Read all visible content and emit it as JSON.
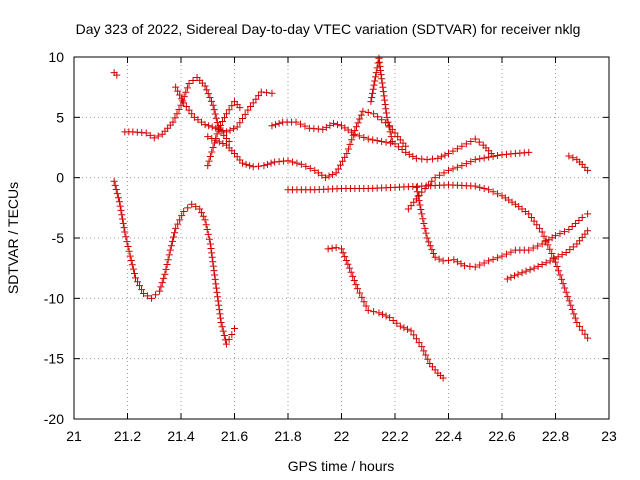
{
  "chart_data": {
    "type": "scatter",
    "title": "Day 323 of 2022, Sidereal Day-to-day VTEC variation (SDTVAR) for receiver nklg",
    "xlabel": "GPS time / hours",
    "ylabel": "SDTVAR / TECUs",
    "xlim": [
      21,
      23
    ],
    "ylim": [
      -20,
      10
    ],
    "xticks": [
      "21",
      "21.2",
      "21.4",
      "21.6",
      "21.8",
      "22",
      "22.2",
      "22.4",
      "22.6",
      "22.8",
      "23"
    ],
    "yticks": [
      "-20",
      "-15",
      "-10",
      "-5",
      "0",
      "5",
      "10"
    ],
    "grid": true,
    "marker": "+",
    "color": "#d40000",
    "series": [
      {
        "name": "t1",
        "points": [
          [
            21.15,
            8.7
          ],
          [
            21.16,
            8.5
          ]
        ]
      },
      {
        "name": "t2",
        "points": [
          [
            21.15,
            -0.3
          ],
          [
            21.17,
            -2
          ],
          [
            21.19,
            -4.5
          ],
          [
            21.21,
            -6.5
          ],
          [
            21.23,
            -8.3
          ],
          [
            21.26,
            -9.6
          ],
          [
            21.29,
            -10
          ],
          [
            21.32,
            -9.4
          ],
          [
            21.34,
            -8
          ],
          [
            21.36,
            -6
          ],
          [
            21.38,
            -4.2
          ],
          [
            21.41,
            -2.8
          ],
          [
            21.44,
            -2.2
          ],
          [
            21.47,
            -2.6
          ],
          [
            21.49,
            -3.5
          ],
          [
            21.51,
            -5.5
          ],
          [
            21.53,
            -8.8
          ],
          [
            21.55,
            -12
          ],
          [
            21.57,
            -13.8
          ],
          [
            21.59,
            -13
          ],
          [
            21.6,
            -12.5
          ]
        ]
      },
      {
        "name": "t3",
        "points": [
          [
            21.19,
            3.8
          ],
          [
            21.22,
            3.8
          ],
          [
            21.27,
            3.7
          ],
          [
            21.3,
            3.3
          ],
          [
            21.33,
            3.6
          ],
          [
            21.37,
            4.6
          ],
          [
            21.4,
            6
          ],
          [
            21.43,
            7.8
          ],
          [
            21.46,
            8.3
          ],
          [
            21.49,
            7.6
          ],
          [
            21.52,
            6
          ],
          [
            21.54,
            4.2
          ],
          [
            21.56,
            3.5
          ],
          [
            21.58,
            3
          ]
        ]
      },
      {
        "name": "t4",
        "points": [
          [
            21.38,
            7.5
          ],
          [
            21.41,
            6.2
          ],
          [
            21.45,
            5
          ],
          [
            21.49,
            4.4
          ],
          [
            21.53,
            4.1
          ],
          [
            21.57,
            3.8
          ],
          [
            21.61,
            4.2
          ],
          [
            21.65,
            5.6
          ],
          [
            21.7,
            7.1
          ],
          [
            21.74,
            7
          ]
        ]
      },
      {
        "name": "t5",
        "points": [
          [
            21.5,
            1
          ],
          [
            21.52,
            2.5
          ],
          [
            21.54,
            4
          ],
          [
            21.57,
            5.3
          ],
          [
            21.6,
            6.3
          ],
          [
            21.62,
            5.8
          ]
        ]
      },
      {
        "name": "t6",
        "points": [
          [
            21.5,
            3.4
          ],
          [
            21.53,
            3.1
          ],
          [
            21.57,
            2.7
          ],
          [
            21.6,
            2
          ],
          [
            21.63,
            1.2
          ],
          [
            21.67,
            0.9
          ],
          [
            21.71,
            1
          ],
          [
            21.75,
            1.3
          ],
          [
            21.8,
            1.4
          ],
          [
            21.85,
            1.1
          ],
          [
            21.9,
            0.6
          ],
          [
            21.94,
            0
          ],
          [
            21.98,
            0.4
          ],
          [
            22.02,
            2
          ],
          [
            22.05,
            3.9
          ],
          [
            22.08,
            5.5
          ],
          [
            22.12,
            5.3
          ],
          [
            22.15,
            4.8
          ],
          [
            22.18,
            4.3
          ],
          [
            22.21,
            3.4
          ],
          [
            22.24,
            2.6
          ]
        ]
      },
      {
        "name": "t7",
        "points": [
          [
            21.74,
            4.3
          ],
          [
            21.78,
            4.6
          ],
          [
            21.83,
            4.6
          ],
          [
            21.88,
            4.1
          ],
          [
            21.93,
            4
          ],
          [
            21.97,
            4.5
          ],
          [
            22,
            4.3
          ],
          [
            22.05,
            3.6
          ],
          [
            22.1,
            3.2
          ],
          [
            22.15,
            3
          ],
          [
            22.2,
            2.8
          ],
          [
            22.24,
            2.1
          ],
          [
            22.28,
            1.6
          ],
          [
            22.32,
            1.5
          ],
          [
            22.36,
            1.6
          ],
          [
            22.4,
            2
          ],
          [
            22.45,
            2.6
          ],
          [
            22.5,
            3.2
          ],
          [
            22.53,
            2.7
          ],
          [
            22.56,
            2
          ]
        ]
      },
      {
        "name": "t8",
        "points": [
          [
            22.11,
            6.3
          ],
          [
            22.13,
            8.7
          ],
          [
            22.14,
            9.9
          ],
          [
            22.15,
            8.2
          ],
          [
            22.17,
            5
          ],
          [
            22.19,
            3
          ]
        ]
      },
      {
        "name": "t9",
        "points": [
          [
            21.8,
            -1
          ],
          [
            21.9,
            -1
          ],
          [
            22,
            -0.9
          ],
          [
            22.1,
            -0.9
          ],
          [
            22.2,
            -0.8
          ],
          [
            22.3,
            -0.7
          ],
          [
            22.4,
            -0.6
          ],
          [
            22.5,
            -0.7
          ],
          [
            22.55,
            -1
          ],
          [
            22.6,
            -1.5
          ],
          [
            22.65,
            -2.2
          ],
          [
            22.7,
            -3
          ],
          [
            22.75,
            -4.5
          ],
          [
            22.8,
            -7
          ],
          [
            22.84,
            -9.5
          ],
          [
            22.88,
            -12
          ],
          [
            22.92,
            -13.3
          ]
        ]
      },
      {
        "name": "t10",
        "points": [
          [
            22.25,
            -2.6
          ],
          [
            22.3,
            -1.2
          ],
          [
            22.35,
            0
          ],
          [
            22.4,
            0.6
          ],
          [
            22.45,
            1
          ],
          [
            22.5,
            1.5
          ],
          [
            22.55,
            1.7
          ],
          [
            22.6,
            1.9
          ],
          [
            22.65,
            2
          ],
          [
            22.7,
            2.1
          ]
        ]
      },
      {
        "name": "t11",
        "points": [
          [
            22.28,
            -0.8
          ],
          [
            22.3,
            -3
          ],
          [
            22.32,
            -5
          ],
          [
            22.35,
            -6.6
          ],
          [
            22.38,
            -6.9
          ],
          [
            22.42,
            -6.8
          ],
          [
            22.46,
            -7.3
          ],
          [
            22.5,
            -7.4
          ],
          [
            22.55,
            -6.9
          ],
          [
            22.6,
            -6.5
          ],
          [
            22.65,
            -6
          ],
          [
            22.7,
            -6
          ],
          [
            22.75,
            -5.5
          ],
          [
            22.8,
            -4.8
          ],
          [
            22.85,
            -4.3
          ],
          [
            22.9,
            -3.3
          ],
          [
            22.92,
            -3
          ]
        ]
      },
      {
        "name": "t12",
        "points": [
          [
            21.95,
            -5.9
          ],
          [
            21.98,
            -5.8
          ],
          [
            22,
            -5.9
          ],
          [
            22.03,
            -7.5
          ],
          [
            22.06,
            -9.2
          ],
          [
            22.1,
            -11
          ],
          [
            22.14,
            -11.2
          ],
          [
            22.18,
            -11.6
          ],
          [
            22.22,
            -12.3
          ],
          [
            22.26,
            -12.7
          ],
          [
            22.3,
            -14
          ],
          [
            22.33,
            -15.4
          ],
          [
            22.36,
            -16.2
          ],
          [
            22.38,
            -16.6
          ]
        ]
      },
      {
        "name": "t13",
        "points": [
          [
            22.62,
            -8.4
          ],
          [
            22.66,
            -8
          ],
          [
            22.72,
            -7.5
          ],
          [
            22.78,
            -6.9
          ],
          [
            22.84,
            -6.2
          ],
          [
            22.88,
            -5.5
          ],
          [
            22.92,
            -4.4
          ]
        ]
      },
      {
        "name": "t14",
        "points": [
          [
            22.85,
            1.8
          ],
          [
            22.88,
            1.5
          ],
          [
            22.9,
            1.1
          ],
          [
            22.92,
            0.6
          ]
        ]
      }
    ]
  }
}
